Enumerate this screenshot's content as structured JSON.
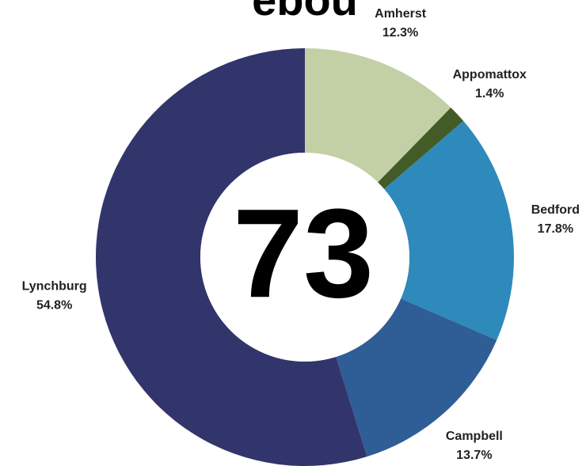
{
  "chart_data": {
    "type": "donut",
    "title": "ebou",
    "categories": [
      "Amherst",
      "Appomattox",
      "Bedford",
      "Campbell",
      "Lynchburg"
    ],
    "values": [
      12.3,
      1.4,
      17.8,
      13.7,
      54.8
    ],
    "value_labels": [
      "12.3%",
      "1.4%",
      "17.8%",
      "13.7%",
      "54.8%"
    ],
    "colors": [
      "#c3d0a6",
      "#435b27",
      "#2e8aba",
      "#2f5d96",
      "#32356b"
    ],
    "center_label": "73"
  }
}
